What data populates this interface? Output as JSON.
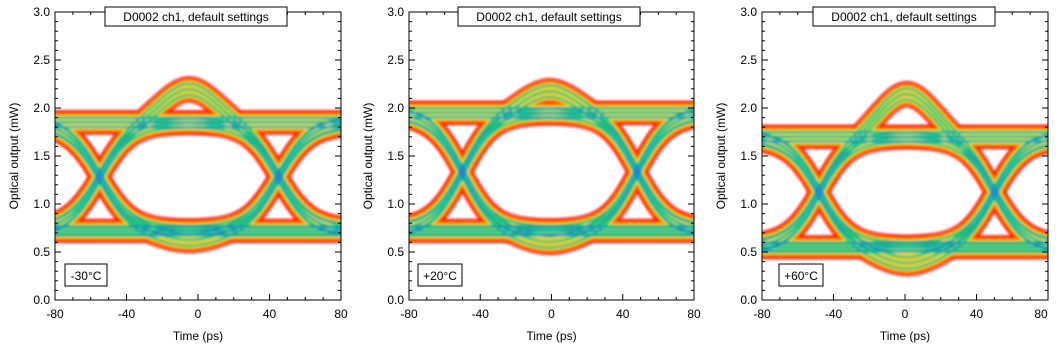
{
  "figure": {
    "panels": [
      {
        "title_box": "D0002 ch1, default settings",
        "condition": "-30°C",
        "xlabel": "Time (ps)",
        "ylabel": "Optical output (mW)"
      },
      {
        "title_box": "D0002 ch1, default settings",
        "condition": "+20°C",
        "xlabel": "Time (ps)",
        "ylabel": "Optical output (mW)"
      },
      {
        "title_box": "D0002 ch1, default settings",
        "condition": "+60°C",
        "xlabel": "Time (ps)",
        "ylabel": "Optical output (mW)"
      }
    ],
    "colors": {
      "hit_low": "#ff0000",
      "hit_mid": "#ffd200",
      "hit_high": "#22ee33",
      "hit_peak": "#1f55ff"
    }
  },
  "chart_data": [
    {
      "type": "heatmap",
      "title": "D0002 ch1, default settings",
      "annotation": "-30°C",
      "xlabel": "Time (ps)",
      "ylabel": "Optical output (mW)",
      "xlim": [
        -80,
        80
      ],
      "ylim": [
        0.0,
        3.0
      ],
      "x_ticks": [
        "-80",
        "-40",
        "0",
        "40",
        "80"
      ],
      "y_ticks": [
        "0.0",
        "0.5",
        "1.0",
        "1.5",
        "2.0",
        "2.5",
        "3.0"
      ],
      "eye": {
        "low_level": 0.72,
        "high_level": 1.85,
        "overshoot_peak": 2.2,
        "undershoot_min": 0.62,
        "crossing_times": [
          -55,
          45
        ],
        "crossing_level": 1.3
      }
    },
    {
      "type": "heatmap",
      "title": "D0002 ch1, default settings",
      "annotation": "+20°C",
      "xlabel": "Time (ps)",
      "ylabel": "Optical output (mW)",
      "xlim": [
        -80,
        80
      ],
      "ylim": [
        0.0,
        3.0
      ],
      "x_ticks": [
        "-80",
        "-40",
        "0",
        "40",
        "80"
      ],
      "y_ticks": [
        "0.0",
        "0.5",
        "1.0",
        "1.5",
        "2.0",
        "2.5",
        "3.0"
      ],
      "eye": {
        "low_level": 0.72,
        "high_level": 1.95,
        "overshoot_peak": 2.18,
        "undershoot_min": 0.6,
        "crossing_times": [
          -50,
          48
        ],
        "crossing_level": 1.35
      }
    },
    {
      "type": "heatmap",
      "title": "D0002 ch1, default settings",
      "annotation": "+60°C",
      "xlabel": "Time (ps)",
      "ylabel": "Optical output (mW)",
      "xlim": [
        -80,
        80
      ],
      "ylim": [
        0.0,
        3.0
      ],
      "x_ticks": [
        "-80",
        "-40",
        "0",
        "40",
        "80"
      ],
      "y_ticks": [
        "0.0",
        "0.5",
        "1.0",
        "1.5",
        "2.0",
        "2.5",
        "3.0"
      ],
      "eye": {
        "low_level": 0.55,
        "high_level": 1.7,
        "overshoot_peak": 2.15,
        "undershoot_min": 0.38,
        "crossing_times": [
          -48,
          50
        ],
        "crossing_level": 1.15
      }
    }
  ]
}
